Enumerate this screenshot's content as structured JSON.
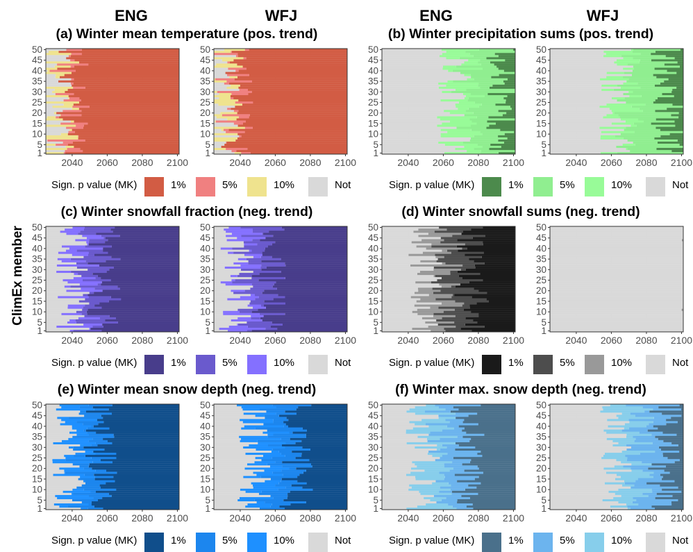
{
  "figure": {
    "ylabel": "ClimEx member",
    "col_headers": [
      "ENG",
      "WFJ",
      "ENG",
      "WFJ"
    ],
    "x_ticks": [
      2040,
      2060,
      2080,
      2100
    ],
    "y_ticks": [
      1,
      5,
      10,
      15,
      20,
      25,
      30,
      35,
      40,
      45,
      50
    ],
    "legend_title": "Sign. p value (MK)",
    "legend_labels": [
      "1%",
      "5%",
      "10%",
      "Not"
    ]
  },
  "chart_data": [
    {
      "id": "a",
      "type": "heatmap",
      "title": "(a) Winter mean temperature (pos. trend)",
      "sites": [
        "ENG",
        "WFJ"
      ],
      "x_range": [
        2025,
        2100
      ],
      "members": [
        1,
        50
      ],
      "colors": {
        "1%": "#d25c44",
        "5%": "#f08080",
        "10%": "#efe38e",
        "Not": "#d9d9d9"
      },
      "onset_mean": {
        "1%": [
          2040,
          2038
        ],
        "5%": [
          2034,
          2033
        ],
        "10%": [
          2031,
          2030
        ]
      }
    },
    {
      "id": "b",
      "type": "heatmap",
      "title": "(b) Winter precipitation sums (pos. trend)",
      "sites": [
        "ENG",
        "WFJ"
      ],
      "x_range": [
        2025,
        2100
      ],
      "members": [
        1,
        50
      ],
      "colors": {
        "1%": "#4c8a4c",
        "5%": "#90ee90",
        "10%": "#98fb98",
        "Not": "#d9d9d9"
      },
      "onset_mean": {
        "1%": [
          2094,
          2092
        ],
        "5%": [
          2074,
          2070
        ],
        "10%": [
          2066,
          2063
        ]
      }
    },
    {
      "id": "c",
      "type": "heatmap",
      "title": "(c) Winter snowfall fraction (neg. trend)",
      "sites": [
        "ENG",
        "WFJ"
      ],
      "x_range": [
        2025,
        2100
      ],
      "members": [
        1,
        50
      ],
      "colors": {
        "1%": "#483d8b",
        "5%": "#6a5acd",
        "10%": "#8470ff",
        "Not": "#d9d9d9"
      },
      "onset_mean": {
        "1%": [
          2058,
          2056
        ],
        "5%": [
          2048,
          2045
        ],
        "10%": [
          2040,
          2038
        ]
      }
    },
    {
      "id": "d",
      "type": "heatmap",
      "title": "(d) Winter snowfall sums (neg. trend)",
      "sites": [
        "ENG",
        "WFJ"
      ],
      "x_range": [
        2025,
        2100
      ],
      "members": [
        1,
        50
      ],
      "colors": {
        "1%": "#1a1a1a",
        "5%": "#4d4d4d",
        "10%": "#999999",
        "Not": "#d9d9d9"
      },
      "onset_mean": {
        "1%": [
          2076,
          2110
        ],
        "5%": [
          2063,
          2110
        ],
        "10%": [
          2050,
          2110
        ]
      }
    },
    {
      "id": "e",
      "type": "heatmap",
      "title": "(e) Winter mean snow depth (neg. trend)",
      "sites": [
        "ENG",
        "WFJ"
      ],
      "x_range": [
        2025,
        2100
      ],
      "members": [
        1,
        50
      ],
      "colors": {
        "1%": "#104e8b",
        "5%": "#1c86ee",
        "10%": "#1e90ff",
        "Not": "#d9d9d9"
      },
      "onset_mean": {
        "1%": [
          2056,
          2072
        ],
        "5%": [
          2045,
          2058
        ],
        "10%": [
          2038,
          2048
        ]
      }
    },
    {
      "id": "f",
      "type": "heatmap",
      "title": "(f) Winter max. snow depth (neg. trend)",
      "sites": [
        "ENG",
        "WFJ"
      ],
      "x_range": [
        2025,
        2100
      ],
      "members": [
        1,
        50
      ],
      "colors": {
        "1%": "#4a708b",
        "5%": "#6cb4ee",
        "10%": "#87ceeb",
        "Not": "#d9d9d9"
      },
      "onset_mean": {
        "1%": [
          2074,
          2090
        ],
        "5%": [
          2058,
          2075
        ],
        "10%": [
          2048,
          2062
        ]
      }
    }
  ]
}
